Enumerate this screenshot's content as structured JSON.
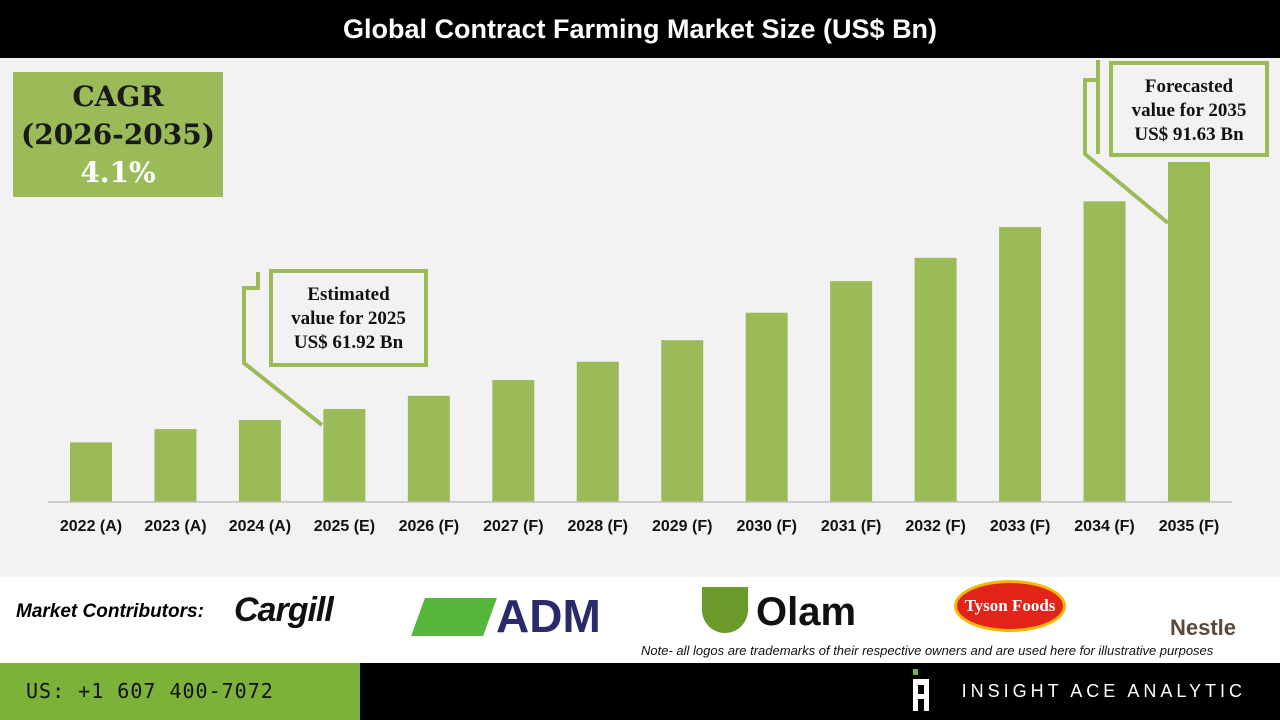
{
  "title": "Global Contract Farming Market Size (US$ Bn)",
  "cagr": {
    "label": "CAGR",
    "period": "(2026-2035)",
    "value": "4.1%"
  },
  "callouts": {
    "estimated": {
      "line1": "Estimated",
      "line2": "value for 2025",
      "line3": "US$ 61.92 Bn"
    },
    "forecasted": {
      "line1": "Forecasted",
      "line2": "value for 2035",
      "line3": "US$ 91.63 Bn"
    }
  },
  "chart_data": {
    "type": "bar",
    "title": "Global Contract Farming Market Size (US$ Bn)",
    "categories": [
      "2022 (A)",
      "2023 (A)",
      "2024 (A)",
      "2025 (E)",
      "2026 (F)",
      "2027 (F)",
      "2028 (F)",
      "2029 (F)",
      "2030 (F)",
      "2031 (F)",
      "2032 (F)",
      "2033 (F)",
      "2034 (F)",
      "2035 (F)"
    ],
    "values": [
      57.9,
      59.5,
      60.6,
      61.92,
      63.5,
      65.4,
      67.6,
      70.2,
      73.5,
      77.3,
      80.1,
      83.8,
      86.9,
      91.63
    ],
    "color": "#9bbb59",
    "grid": false,
    "xlabel": "",
    "ylabel": ""
  },
  "contributors": {
    "label": "Market Contributors:",
    "logos": [
      "Cargill",
      "ADM",
      "Olam",
      "Tyson Foods",
      "Nestle"
    ],
    "note": "Note- all logos are trademarks of their respective owners and are used here for illustrative purposes"
  },
  "footer": {
    "phone": "US: +1 607 400-7072",
    "brand": "INSIGHT ACE ANALYTIC"
  },
  "colors": {
    "accent": "#9bbb59",
    "footer_green": "#7cb23a"
  }
}
